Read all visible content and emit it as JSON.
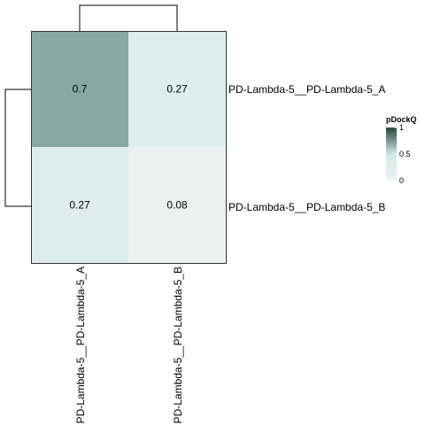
{
  "chart_data": {
    "type": "heatmap",
    "rows": [
      "PD-Lambda-5__PD-Lambda-5_A",
      "PD-Lambda-5__PD-Lambda-5_B"
    ],
    "columns": [
      "PD-Lambda-5__PD-Lambda-5_A",
      "PD-Lambda-5__PD-Lambda-5_B"
    ],
    "values": [
      [
        0.7,
        0.27
      ],
      [
        0.27,
        0.08
      ]
    ],
    "cell_labels": [
      [
        "0.7",
        "0.27"
      ],
      [
        "0.27",
        "0.08"
      ]
    ],
    "row_dendrogram": true,
    "column_dendrogram": true,
    "legend": {
      "title": "pDockQ",
      "placement": "right",
      "ticks": [
        0,
        0.5,
        1
      ],
      "tick_labels": [
        "0",
        "0.5",
        "1"
      ],
      "range": [
        0,
        1
      ],
      "colors": {
        "low": "#f2f2f2",
        "mid": "#cdeae5",
        "high": "#24453a"
      }
    }
  }
}
